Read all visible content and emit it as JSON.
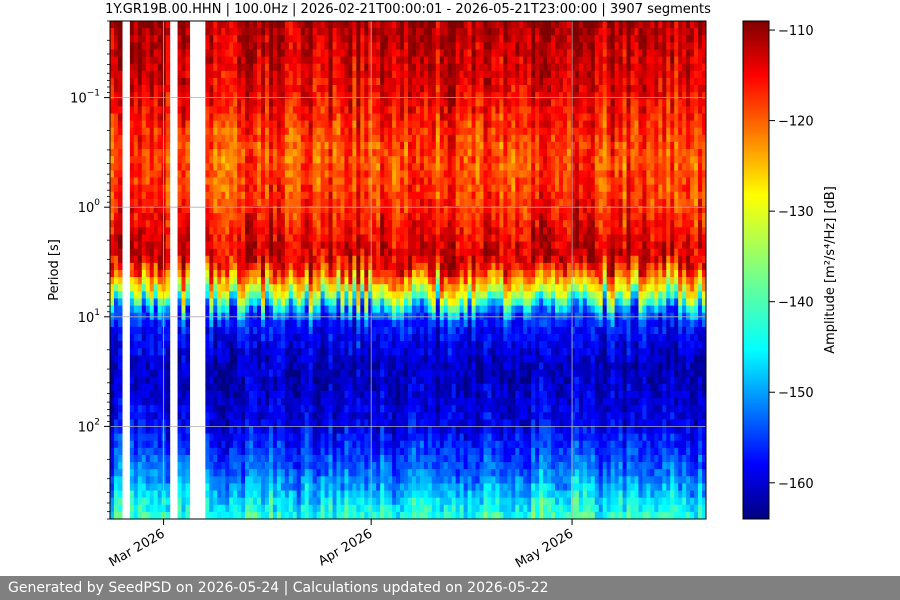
{
  "footer": "Generated by SeedPSD on 2026-05-24 | Calculations updated on 2026-05-22",
  "chart_data": {
    "type": "heatmap",
    "title": "1Y.GR19B.00.HHN | 100.0Hz | 2026-02-21T00:00:01 - 2026-05-21T23:00:00 | 3907 segments",
    "xlabel": "",
    "ylabel": "Period [s]",
    "x_ticks": [
      "Mar 2026",
      "Apr 2026",
      "May 2026"
    ],
    "x_tick_dates": [
      "2026-03-01",
      "2026-04-01",
      "2026-05-01"
    ],
    "x_range": [
      "2026-02-21",
      "2026-05-21"
    ],
    "y_scale": "log",
    "y_inverted": true,
    "y_range": [
      0.02,
      700
    ],
    "y_ticks": [
      0.1,
      1,
      10,
      100
    ],
    "y_tick_labels": [
      "10",
      "10",
      "10",
      "10"
    ],
    "y_tick_exponents": [
      "−1",
      "0",
      "1",
      "2"
    ],
    "grid": true,
    "colorbar": {
      "label": "Amplitude [m²/s⁴/Hz] [dB]",
      "range": [
        -164,
        -109
      ],
      "ticks": [
        -110,
        -120,
        -130,
        -140,
        -150,
        -160
      ],
      "tick_labels": [
        "−110",
        "−120",
        "−130",
        "−140",
        "−150",
        "−160"
      ],
      "colormap": "jet"
    },
    "data_gaps": [
      [
        "2026-02-23",
        "2026-02-24"
      ],
      [
        "2026-03-02",
        "2026-03-03"
      ],
      [
        "2026-03-05",
        "2026-03-07"
      ]
    ],
    "profile": [
      {
        "period": 0.02,
        "amplitude_db": -111
      },
      {
        "period": 0.1,
        "amplitude_db": -115
      },
      {
        "period": 0.3,
        "amplitude_db": -120
      },
      {
        "period": 1,
        "amplitude_db": -118
      },
      {
        "period": 3,
        "amplitude_db": -112
      },
      {
        "period": 6,
        "amplitude_db": -132
      },
      {
        "period": 10,
        "amplitude_db": -155
      },
      {
        "period": 30,
        "amplitude_db": -161
      },
      {
        "period": 100,
        "amplitude_db": -158
      },
      {
        "period": 300,
        "amplitude_db": -150
      },
      {
        "period": 700,
        "amplitude_db": -140
      }
    ]
  }
}
